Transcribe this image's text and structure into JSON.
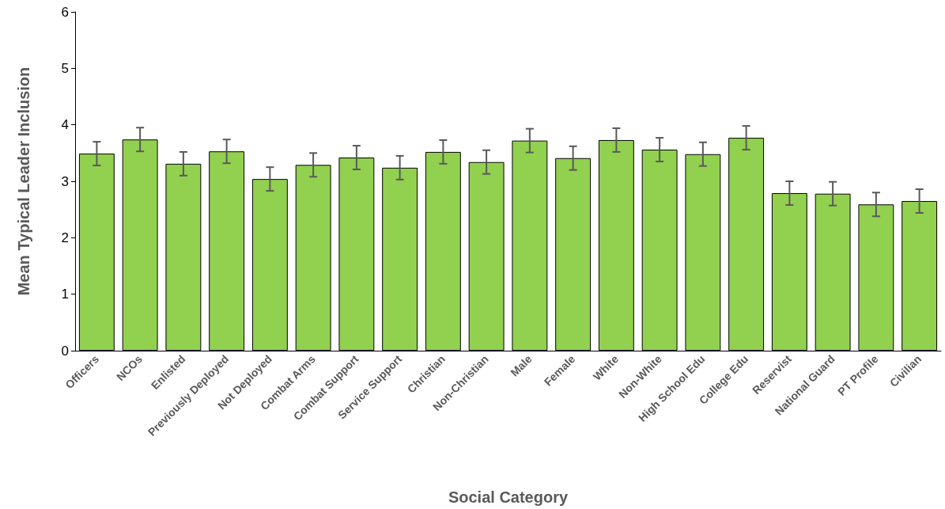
{
  "chart_data": {
    "type": "bar",
    "xlabel": "Social Category",
    "ylabel": "Mean Typical Leader Inclusion",
    "categories": [
      "Officers",
      "NCOs",
      "Enlisted",
      "Previously Deployed",
      "Not Deployed",
      "Combat Arms",
      "Combat Support",
      "Service Support",
      "Christian",
      "Non-Christian",
      "Male",
      "Female",
      "White",
      "Non-White",
      "High School Edu",
      "College Edu",
      "Reservist",
      "National Guard",
      "PT Profile",
      "Civilian"
    ],
    "values": [
      3.49,
      3.74,
      3.31,
      3.53,
      3.04,
      3.29,
      3.42,
      3.24,
      3.52,
      3.34,
      3.72,
      3.41,
      3.73,
      3.56,
      3.48,
      3.77,
      2.79,
      2.78,
      2.59,
      2.65
    ],
    "errors": [
      0.21,
      0.21,
      0.21,
      0.21,
      0.21,
      0.21,
      0.21,
      0.21,
      0.21,
      0.21,
      0.21,
      0.21,
      0.21,
      0.21,
      0.21,
      0.21,
      0.21,
      0.21,
      0.21,
      0.21
    ],
    "color": "#92d050",
    "ylim": [
      0,
      6
    ],
    "yticks": [
      0,
      1,
      2,
      3,
      4,
      5,
      6
    ],
    "grid": false
  }
}
